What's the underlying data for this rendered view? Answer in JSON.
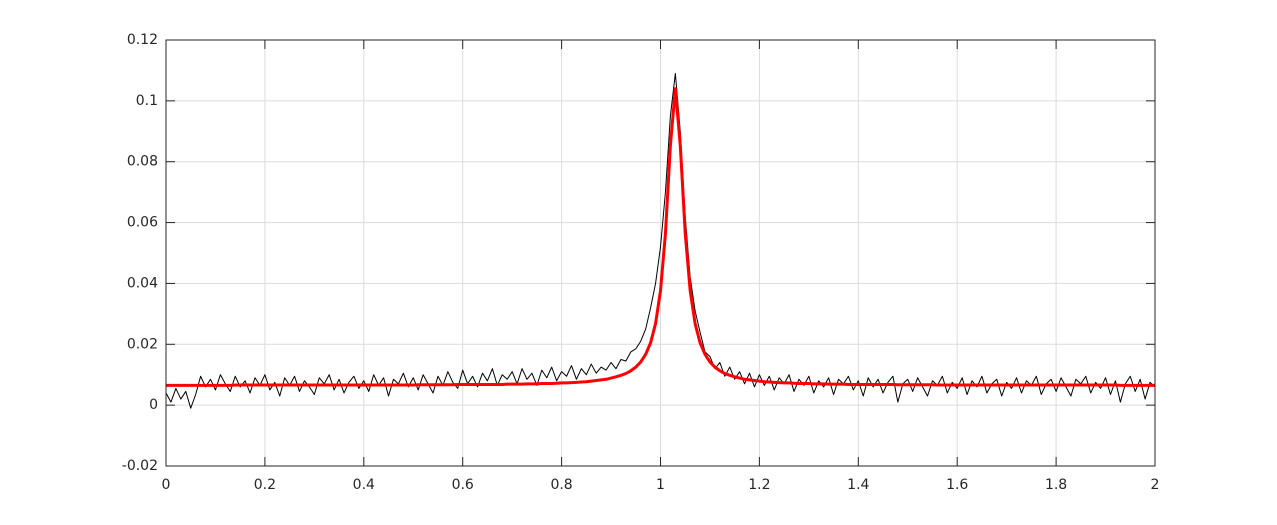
{
  "chart_data": {
    "type": "line",
    "x": [
      0,
      0.01,
      0.02,
      0.03,
      0.04,
      0.05,
      0.06,
      0.07,
      0.08,
      0.09,
      0.1,
      0.11,
      0.12,
      0.13,
      0.14,
      0.15,
      0.16,
      0.17,
      0.18,
      0.19,
      0.2,
      0.21,
      0.22,
      0.23,
      0.24,
      0.25,
      0.26,
      0.27,
      0.28,
      0.29,
      0.3,
      0.31,
      0.32,
      0.33,
      0.34,
      0.35,
      0.36,
      0.37,
      0.38,
      0.39,
      0.4,
      0.41,
      0.42,
      0.43,
      0.44,
      0.45,
      0.46,
      0.47,
      0.48,
      0.49,
      0.5,
      0.51,
      0.52,
      0.53,
      0.54,
      0.55,
      0.56,
      0.57,
      0.58,
      0.59,
      0.6,
      0.61,
      0.62,
      0.63,
      0.64,
      0.65,
      0.66,
      0.67,
      0.68,
      0.69,
      0.7,
      0.71,
      0.72,
      0.73,
      0.74,
      0.75,
      0.76,
      0.77,
      0.78,
      0.79,
      0.8,
      0.81,
      0.82,
      0.83,
      0.84,
      0.85,
      0.86,
      0.87,
      0.88,
      0.89,
      0.9,
      0.91,
      0.92,
      0.93,
      0.94,
      0.95,
      0.96,
      0.97,
      0.98,
      0.99,
      1,
      1.01,
      1.02,
      1.03,
      1.04,
      1.05,
      1.06,
      1.07,
      1.08,
      1.09,
      1.1,
      1.11,
      1.12,
      1.13,
      1.14,
      1.15,
      1.16,
      1.17,
      1.18,
      1.19,
      1.2,
      1.21,
      1.22,
      1.23,
      1.24,
      1.25,
      1.26,
      1.27,
      1.28,
      1.29,
      1.3,
      1.31,
      1.32,
      1.33,
      1.34,
      1.35,
      1.36,
      1.37,
      1.38,
      1.39,
      1.4,
      1.41,
      1.42,
      1.43,
      1.44,
      1.45,
      1.46,
      1.47,
      1.48,
      1.49,
      1.5,
      1.51,
      1.52,
      1.53,
      1.54,
      1.55,
      1.56,
      1.57,
      1.58,
      1.59,
      1.6,
      1.61,
      1.62,
      1.63,
      1.64,
      1.65,
      1.66,
      1.67,
      1.68,
      1.69,
      1.7,
      1.71,
      1.72,
      1.73,
      1.74,
      1.75,
      1.76,
      1.77,
      1.78,
      1.79,
      1.8,
      1.81,
      1.82,
      1.83,
      1.84,
      1.85,
      1.86,
      1.87,
      1.88,
      1.89,
      1.9,
      1.91,
      1.92,
      1.93,
      1.94,
      1.95,
      1.96,
      1.97,
      1.98,
      1.99,
      2
    ],
    "series": [
      {
        "color": "#000000",
        "width": 1,
        "values": [
          0.004,
          0.001,
          0.0055,
          0.002,
          0.0045,
          -0.001,
          0.0035,
          0.0095,
          0.006,
          0.0085,
          0.005,
          0.01,
          0.007,
          0.0045,
          0.0095,
          0.006,
          0.008,
          0.004,
          0.009,
          0.0065,
          0.01,
          0.005,
          0.0075,
          0.003,
          0.009,
          0.0065,
          0.0095,
          0.0045,
          0.008,
          0.006,
          0.0035,
          0.009,
          0.007,
          0.01,
          0.005,
          0.0085,
          0.004,
          0.0075,
          0.0095,
          0.0055,
          0.008,
          0.0045,
          0.01,
          0.0065,
          0.009,
          0.003,
          0.0085,
          0.007,
          0.0105,
          0.006,
          0.009,
          0.005,
          0.01,
          0.007,
          0.004,
          0.0095,
          0.0065,
          0.011,
          0.0075,
          0.0055,
          0.0115,
          0.007,
          0.0095,
          0.006,
          0.0105,
          0.008,
          0.012,
          0.0065,
          0.01,
          0.0085,
          0.011,
          0.007,
          0.012,
          0.0085,
          0.0105,
          0.0065,
          0.0115,
          0.009,
          0.0125,
          0.008,
          0.011,
          0.0095,
          0.013,
          0.0085,
          0.012,
          0.01,
          0.0135,
          0.0105,
          0.0125,
          0.0115,
          0.014,
          0.012,
          0.015,
          0.0145,
          0.0175,
          0.0185,
          0.021,
          0.025,
          0.032,
          0.04,
          0.052,
          0.07,
          0.095,
          0.109,
          0.09,
          0.062,
          0.042,
          0.031,
          0.024,
          0.0175,
          0.016,
          0.012,
          0.014,
          0.0095,
          0.0125,
          0.0085,
          0.011,
          0.007,
          0.0105,
          0.006,
          0.01,
          0.0065,
          0.0095,
          0.005,
          0.009,
          0.007,
          0.01,
          0.0045,
          0.0085,
          0.0065,
          0.0095,
          0.004,
          0.008,
          0.006,
          0.009,
          0.0035,
          0.0085,
          0.007,
          0.0095,
          0.005,
          0.008,
          0.003,
          0.009,
          0.006,
          0.0085,
          0.004,
          0.0075,
          0.0095,
          0.001,
          0.007,
          0.0085,
          0.0045,
          0.009,
          0.006,
          0.003,
          0.008,
          0.0065,
          0.0095,
          0.004,
          0.0075,
          0.0055,
          0.009,
          0.0035,
          0.008,
          0.006,
          0.0095,
          0.004,
          0.007,
          0.0085,
          0.003,
          0.0075,
          0.0055,
          0.009,
          0.004,
          0.008,
          0.0065,
          0.0095,
          0.0035,
          0.007,
          0.0085,
          0.0045,
          0.009,
          0.006,
          0.003,
          0.0085,
          0.007,
          0.0095,
          0.004,
          0.0075,
          0.0055,
          0.009,
          0.0035,
          0.008,
          0.001,
          0.007,
          0.0095,
          0.0045,
          0.0085,
          0.002,
          0.0075,
          0.006
        ]
      },
      {
        "color": "#ff0000",
        "width": 3,
        "values": [
          0.0065,
          0.0065,
          0.0065,
          0.0065,
          0.0065,
          0.0065,
          0.0065,
          0.0065,
          0.0065,
          0.0065,
          0.0065,
          0.0065,
          0.0065,
          0.0065,
          0.0066,
          0.0066,
          0.0066,
          0.0066,
          0.0066,
          0.0066,
          0.0066,
          0.0066,
          0.0066,
          0.0066,
          0.0066,
          0.0066,
          0.0066,
          0.0066,
          0.0066,
          0.0066,
          0.0066,
          0.0066,
          0.0066,
          0.0066,
          0.0066,
          0.0066,
          0.0066,
          0.0066,
          0.0066,
          0.0066,
          0.0066,
          0.0066,
          0.0066,
          0.0066,
          0.0066,
          0.0066,
          0.0066,
          0.0066,
          0.0066,
          0.0066,
          0.0066,
          0.0067,
          0.0067,
          0.0067,
          0.0067,
          0.0067,
          0.0067,
          0.0067,
          0.0067,
          0.0068,
          0.0068,
          0.0068,
          0.0068,
          0.0068,
          0.0068,
          0.0068,
          0.0068,
          0.0068,
          0.0068,
          0.0069,
          0.0069,
          0.0069,
          0.0069,
          0.007,
          0.007,
          0.007,
          0.0071,
          0.0071,
          0.0071,
          0.0072,
          0.0073,
          0.0073,
          0.0074,
          0.0075,
          0.0076,
          0.0077,
          0.0079,
          0.0081,
          0.0083,
          0.0085,
          0.0089,
          0.0093,
          0.0098,
          0.0104,
          0.0113,
          0.0125,
          0.0142,
          0.0167,
          0.0205,
          0.0268,
          0.0376,
          0.0564,
          0.0853,
          0.104,
          0.0853,
          0.0564,
          0.0376,
          0.0268,
          0.0205,
          0.0167,
          0.0142,
          0.0125,
          0.0113,
          0.0104,
          0.0098,
          0.0093,
          0.0089,
          0.0085,
          0.0083,
          0.0081,
          0.0079,
          0.0077,
          0.0076,
          0.0075,
          0.0074,
          0.0073,
          0.0073,
          0.0072,
          0.0071,
          0.0071,
          0.0071,
          0.007,
          0.007,
          0.007,
          0.0069,
          0.0069,
          0.0069,
          0.0069,
          0.0068,
          0.0068,
          0.0068,
          0.0068,
          0.0068,
          0.0068,
          0.0068,
          0.0068,
          0.0068,
          0.0068,
          0.0067,
          0.0067,
          0.0067,
          0.0067,
          0.0067,
          0.0067,
          0.0067,
          0.0067,
          0.0066,
          0.0066,
          0.0066,
          0.0066,
          0.0066,
          0.0066,
          0.0066,
          0.0066,
          0.0066,
          0.0066,
          0.0066,
          0.0066,
          0.0066,
          0.0066,
          0.0066,
          0.0066,
          0.0066,
          0.0066,
          0.0066,
          0.0066,
          0.0066,
          0.0066,
          0.0066,
          0.0066,
          0.0066,
          0.0066,
          0.0066,
          0.0066,
          0.0066,
          0.0066,
          0.0066,
          0.0066,
          0.0066,
          0.0066,
          0.0066,
          0.0066,
          0.0066,
          0.0065,
          0.0065,
          0.0065,
          0.0065,
          0.0065,
          0.0065,
          0.0065,
          0.0065
        ]
      }
    ],
    "xlim": [
      0,
      2
    ],
    "xticks": [
      0,
      0.2,
      0.4,
      0.6,
      0.8,
      1,
      1.2,
      1.4,
      1.6,
      1.8,
      2
    ],
    "ylim": [
      -0.02,
      0.12
    ],
    "yticks": [
      -0.02,
      0,
      0.02,
      0.04,
      0.06,
      0.08,
      0.1,
      0.12
    ],
    "grid": true
  }
}
